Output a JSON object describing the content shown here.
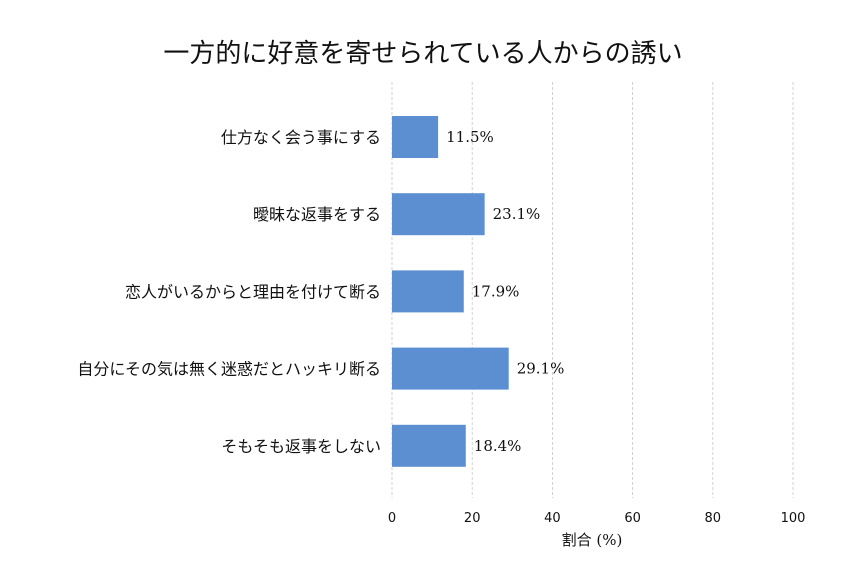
{
  "chart_data": {
    "type": "bar",
    "orientation": "horizontal",
    "title": "一方的に好意を寄せられている人からの誘い",
    "xlabel": "割合 (%)",
    "ylabel": "",
    "xlim": [
      0,
      100
    ],
    "xticks": [
      "0",
      "20",
      "40",
      "60",
      "80",
      "100"
    ],
    "grid": true,
    "color": "#5b8fd1",
    "categories": [
      "仕方なく会う事にする",
      "曖昧な返事をする",
      "恋人がいるからと理由を付けて断る",
      "自分にその気は無く迷惑だとハッキリ断る",
      "そもそも返事をしない"
    ],
    "values": [
      11.5,
      23.1,
      17.9,
      29.1,
      18.4
    ],
    "value_labels": [
      "11.5%",
      "23.1%",
      "17.9%",
      "29.1%",
      "18.4%"
    ]
  }
}
